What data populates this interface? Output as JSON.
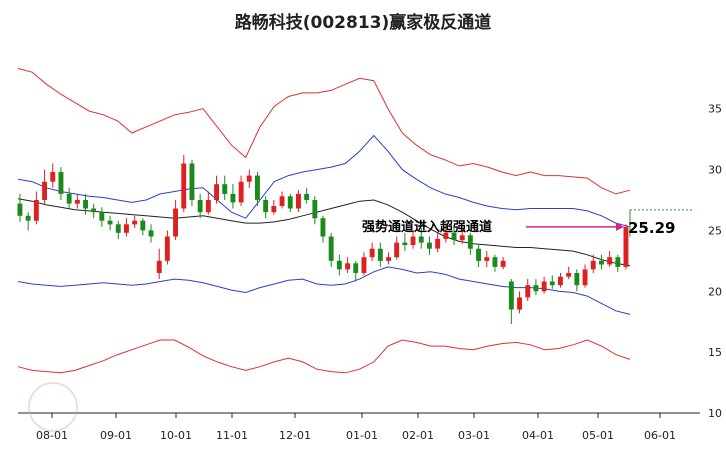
{
  "chart_data": {
    "type": "candlestick",
    "title": "路畅科技(002813)赢家极反通道",
    "xlabel": "",
    "ylabel": "",
    "x_ticks": [
      "08-01",
      "09-01",
      "10-01",
      "11-01",
      "12-01",
      "01-01",
      "02-01",
      "03-01",
      "04-01",
      "05-01",
      "06-01"
    ],
    "y_ticks": [
      10,
      15,
      20,
      25,
      30,
      35
    ],
    "ylim": [
      10,
      39
    ],
    "grid": false,
    "annotation": "强势通道进入超强通道",
    "last_price_label": "25.29",
    "colors": {
      "up": "#e02020",
      "down": "#1a8a1a",
      "outer_band": "#e03030",
      "inner_band": "#2a3fd0",
      "mid_line": "#222222",
      "arrow": "#e0208a",
      "target_line": "#2a9a2a"
    },
    "bands": {
      "outer_upper": [
        38.3,
        38.0,
        37.0,
        36.2,
        35.5,
        34.8,
        34.5,
        34.0,
        33.0,
        33.5,
        34.0,
        34.5,
        34.7,
        35.0,
        33.5,
        32.0,
        31.0,
        33.5,
        35.2,
        36.0,
        36.3,
        36.3,
        36.5,
        37.0,
        37.5,
        37.3,
        35.0,
        33.0,
        32.0,
        31.2,
        30.8,
        30.3,
        30.5,
        30.2,
        29.8,
        29.5,
        29.8,
        29.5,
        29.5,
        29.4,
        29.3,
        28.5,
        28.0,
        28.3
      ],
      "inner_upper": [
        29.2,
        29.0,
        28.5,
        28.2,
        28.0,
        27.8,
        27.7,
        27.5,
        27.3,
        27.5,
        28.0,
        28.2,
        28.4,
        28.5,
        27.5,
        26.5,
        26.0,
        27.5,
        29.0,
        29.5,
        29.8,
        30.0,
        30.2,
        30.5,
        31.5,
        32.8,
        31.5,
        30.0,
        29.2,
        28.5,
        28.0,
        27.7,
        27.3,
        27.0,
        26.8,
        26.7,
        26.8,
        26.8,
        26.8,
        26.8,
        26.6,
        26.2,
        25.6,
        25.3
      ],
      "mid": [
        27.6,
        27.4,
        27.1,
        26.9,
        26.7,
        26.6,
        26.5,
        26.4,
        26.3,
        26.2,
        26.1,
        26.0,
        26.1,
        26.2,
        26.0,
        25.8,
        25.6,
        25.6,
        25.7,
        25.9,
        26.2,
        26.5,
        26.8,
        27.1,
        27.4,
        27.5,
        27.1,
        26.5,
        25.8,
        25.1,
        24.5,
        24.1,
        23.9,
        23.8,
        23.7,
        23.6,
        23.6,
        23.5,
        23.4,
        23.3,
        23.0,
        22.6,
        22.3,
        22.1
      ],
      "inner_lower": [
        20.8,
        20.6,
        20.5,
        20.4,
        20.5,
        20.6,
        20.7,
        20.6,
        20.5,
        20.6,
        20.8,
        21.0,
        20.9,
        20.7,
        20.4,
        20.1,
        19.9,
        20.3,
        20.6,
        20.9,
        21.0,
        20.6,
        20.5,
        20.6,
        21.0,
        21.6,
        22.0,
        21.8,
        21.5,
        21.6,
        21.4,
        21.0,
        20.8,
        20.6,
        20.4,
        20.3,
        20.3,
        20.2,
        20.0,
        19.9,
        19.6,
        19.0,
        18.4,
        18.1
      ],
      "outer_lower": [
        13.8,
        13.5,
        13.4,
        13.3,
        13.5,
        13.9,
        14.3,
        14.8,
        15.2,
        15.6,
        16.0,
        16.0,
        15.4,
        14.7,
        14.2,
        13.8,
        13.5,
        13.8,
        14.2,
        14.5,
        14.2,
        13.6,
        13.4,
        13.3,
        13.6,
        14.2,
        15.5,
        16.0,
        15.8,
        15.5,
        15.5,
        15.3,
        15.2,
        15.5,
        15.7,
        15.8,
        15.6,
        15.2,
        15.3,
        15.6,
        16.0,
        15.5,
        14.8,
        14.4
      ]
    },
    "candles": [
      [
        27.2,
        26.2,
        28.0,
        25.7
      ],
      [
        26.2,
        25.8,
        26.5,
        25.0
      ],
      [
        25.8,
        27.5,
        28.2,
        25.5
      ],
      [
        27.5,
        29.0,
        30.0,
        27.2
      ],
      [
        29.0,
        29.8,
        30.5,
        28.5
      ],
      [
        29.8,
        28.0,
        30.2,
        27.5
      ],
      [
        28.0,
        27.2,
        28.5,
        26.8
      ],
      [
        27.2,
        27.5,
        28.0,
        26.8
      ],
      [
        27.5,
        26.8,
        28.0,
        26.3
      ],
      [
        26.8,
        26.5,
        27.2,
        26.0
      ],
      [
        26.5,
        25.8,
        26.9,
        25.3
      ],
      [
        25.8,
        25.5,
        26.2,
        25.0
      ],
      [
        25.5,
        24.8,
        25.8,
        24.3
      ],
      [
        24.8,
        25.5,
        26.0,
        24.5
      ],
      [
        25.5,
        25.8,
        26.2,
        25.2
      ],
      [
        25.8,
        25.0,
        26.0,
        24.6
      ],
      [
        25.0,
        24.5,
        25.5,
        24.0
      ],
      [
        21.5,
        22.5,
        23.5,
        21.0
      ],
      [
        22.5,
        24.5,
        25.0,
        22.2
      ],
      [
        24.5,
        26.8,
        27.5,
        24.2
      ],
      [
        26.8,
        30.5,
        31.2,
        26.5
      ],
      [
        30.5,
        27.5,
        30.8,
        27.0
      ],
      [
        27.5,
        26.5,
        28.0,
        26.0
      ],
      [
        26.5,
        27.5,
        28.2,
        26.3
      ],
      [
        27.5,
        28.8,
        29.5,
        27.2
      ],
      [
        28.8,
        28.0,
        29.5,
        27.5
      ],
      [
        28.0,
        27.3,
        28.8,
        26.8
      ],
      [
        27.3,
        29.0,
        29.5,
        27.0
      ],
      [
        29.0,
        29.5,
        30.0,
        28.5
      ],
      [
        29.5,
        27.5,
        29.8,
        27.0
      ],
      [
        27.5,
        26.5,
        27.8,
        26.0
      ],
      [
        26.5,
        27.0,
        27.5,
        26.3
      ],
      [
        27.0,
        27.8,
        28.2,
        26.8
      ],
      [
        27.8,
        26.8,
        28.0,
        26.5
      ],
      [
        26.8,
        28.0,
        28.3,
        26.5
      ],
      [
        28.0,
        27.5,
        28.5,
        27.2
      ],
      [
        27.5,
        26.0,
        27.8,
        25.5
      ],
      [
        26.0,
        24.5,
        26.2,
        24.0
      ],
      [
        24.5,
        22.5,
        24.8,
        22.0
      ],
      [
        22.5,
        21.8,
        23.0,
        21.3
      ],
      [
        21.8,
        22.3,
        22.8,
        21.5
      ],
      [
        22.3,
        21.5,
        22.5,
        20.8
      ],
      [
        21.5,
        22.8,
        23.2,
        21.3
      ],
      [
        22.8,
        23.5,
        24.0,
        22.5
      ],
      [
        23.5,
        22.5,
        24.0,
        22.0
      ],
      [
        22.5,
        22.8,
        23.2,
        22.2
      ],
      [
        22.8,
        24.0,
        24.5,
        22.6
      ],
      [
        24.0,
        23.8,
        24.8,
        23.3
      ],
      [
        23.8,
        24.5,
        25.0,
        23.5
      ],
      [
        24.5,
        24.0,
        25.2,
        23.5
      ],
      [
        24.0,
        23.5,
        24.5,
        23.0
      ],
      [
        23.5,
        24.3,
        24.8,
        23.2
      ],
      [
        24.3,
        24.8,
        25.5,
        24.0
      ],
      [
        24.8,
        24.2,
        25.2,
        23.8
      ],
      [
        24.2,
        24.6,
        25.0,
        23.9
      ],
      [
        24.6,
        23.5,
        24.8,
        23.0
      ],
      [
        23.5,
        22.5,
        23.8,
        22.0
      ],
      [
        22.5,
        22.8,
        23.3,
        22.0
      ],
      [
        22.8,
        22.0,
        23.0,
        21.6
      ],
      [
        22.0,
        22.5,
        22.8,
        21.8
      ],
      [
        20.8,
        18.5,
        21.0,
        17.3
      ],
      [
        18.5,
        19.5,
        20.0,
        18.2
      ],
      [
        19.5,
        20.5,
        21.0,
        19.2
      ],
      [
        20.5,
        20.0,
        21.0,
        19.7
      ],
      [
        20.0,
        20.8,
        21.2,
        19.8
      ],
      [
        20.8,
        20.5,
        21.3,
        20.2
      ],
      [
        20.5,
        21.2,
        21.5,
        20.3
      ],
      [
        21.2,
        21.5,
        22.0,
        21.0
      ],
      [
        21.5,
        20.5,
        21.8,
        20.0
      ],
      [
        20.5,
        21.8,
        22.2,
        20.3
      ],
      [
        21.8,
        22.5,
        23.0,
        21.5
      ],
      [
        22.5,
        22.2,
        23.0,
        21.8
      ],
      [
        22.2,
        22.8,
        23.3,
        22.0
      ],
      [
        22.8,
        22.0,
        23.0,
        21.6
      ],
      [
        22.0,
        25.29,
        25.5,
        21.8
      ]
    ]
  }
}
